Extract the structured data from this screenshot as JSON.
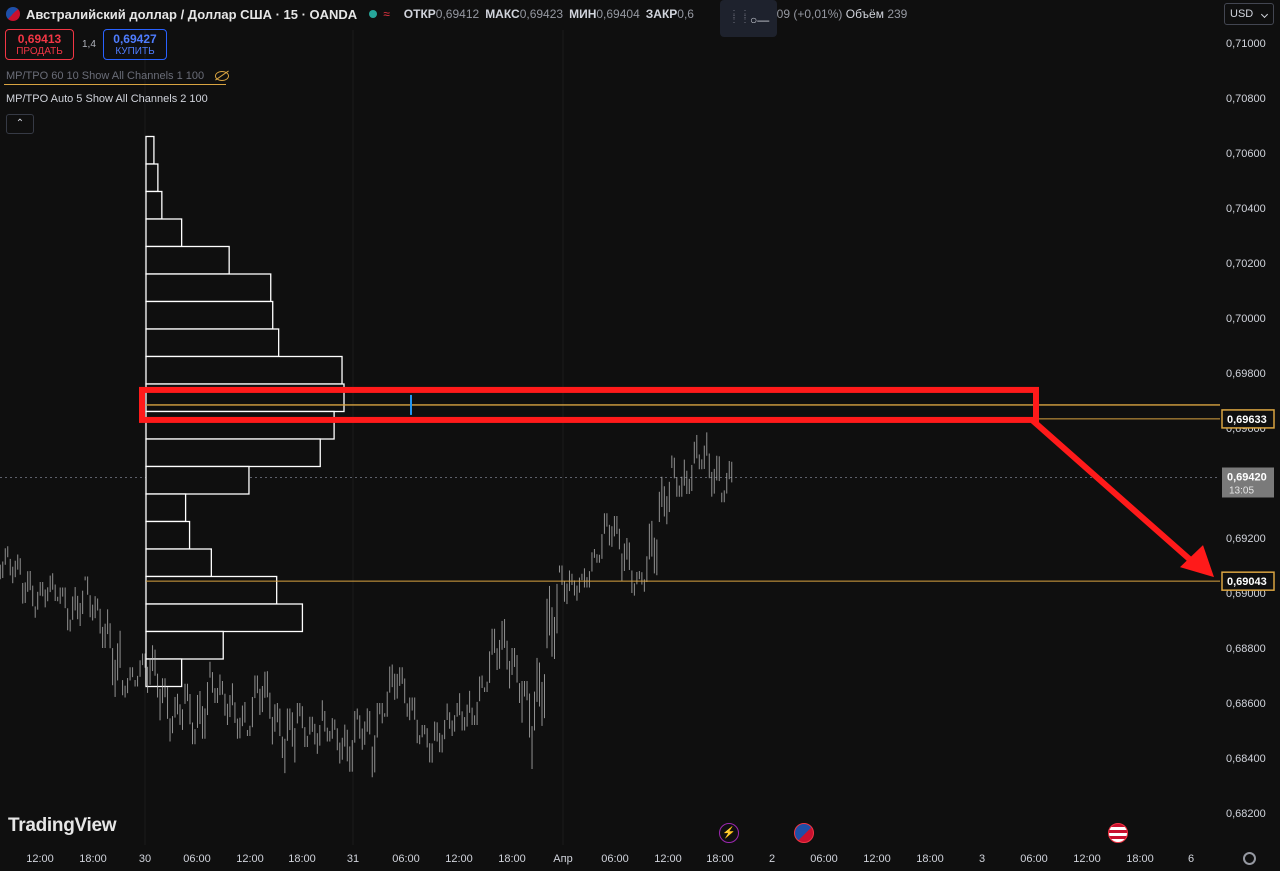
{
  "header": {
    "symbol_title": "Австралийский доллар / Доллар США · 15 · OANDA",
    "open_label": "ОТКР",
    "open_value": "0,69412",
    "high_label": "МАКС",
    "high_value": "0,69423",
    "low_label": "МИН",
    "low_value": "0,69404",
    "close_label": "ЗАКР",
    "close_value": "0,6",
    "change_value": "009 (+0,01%)",
    "volume_label": "Объём",
    "volume_value": "239"
  },
  "trade": {
    "sell_price": "0,69413",
    "sell_label": "ПРОДАТЬ",
    "spread": "1,4",
    "buy_price": "0,69427",
    "buy_label": "КУПИТЬ"
  },
  "indicators": [
    {
      "name": "MP/TPO 60 10 Show All Channels 1 100",
      "hidden": true
    },
    {
      "name": "MP/TPO Auto 5 Show All Channels 2 100",
      "hidden": false
    }
  ],
  "toolbar": {
    "collapse_glyph": "⌃",
    "currency": "USD",
    "settings_icon": "gear-icon"
  },
  "brand": {
    "logo_text": "TradingView"
  },
  "price_axis": {
    "ticks": [
      "0,71000",
      "0,70800",
      "0,70600",
      "0,70400",
      "0,70200",
      "0,70000",
      "0,69800",
      "0,69600",
      "0,69400",
      "0,69200",
      "0,69000",
      "0,68800",
      "0,68600",
      "0,68400",
      "0,68200"
    ],
    "current_price": "0,69420",
    "countdown": "13:05",
    "level_upper": "0,69633",
    "level_lower": "0,69043"
  },
  "time_axis": {
    "ticks": [
      "12:00",
      "18:00",
      "30",
      "06:00",
      "12:00",
      "18:00",
      "31",
      "06:00",
      "12:00",
      "18:00",
      "Апр",
      "06:00",
      "12:00",
      "18:00",
      "2",
      "06:00",
      "12:00",
      "18:00",
      "3",
      "06:00",
      "12:00",
      "18:00",
      "6"
    ]
  },
  "events": [
    {
      "icon": "lightning-icon",
      "glyph": "⚡"
    },
    {
      "icon": "australia-flag-icon"
    },
    {
      "icon": "us-flag-icon"
    }
  ],
  "colors": {
    "background": "#0f0f0f",
    "candles": "#bcbcbc",
    "profile": "#ffffff",
    "level_line": "#d9a441",
    "highlight_box": "#ff1a1a",
    "poc_marker": "#2196f3"
  },
  "chart_data": {
    "type": "candlestick",
    "title": "Австралийский доллар / Доллар США · 15 · OANDA",
    "y_range": [
      0.682,
      0.711
    ],
    "volume_profile_levels": [
      {
        "price": 0.7061,
        "size": 0.04
      },
      {
        "price": 0.7051,
        "size": 0.06
      },
      {
        "price": 0.7041,
        "size": 0.08
      },
      {
        "price": 0.7031,
        "size": 0.18
      },
      {
        "price": 0.7021,
        "size": 0.42
      },
      {
        "price": 0.7011,
        "size": 0.63
      },
      {
        "price": 0.7001,
        "size": 0.64
      },
      {
        "price": 0.6991,
        "size": 0.67
      },
      {
        "price": 0.6981,
        "size": 0.99
      },
      {
        "price": 0.6971,
        "size": 1.0
      },
      {
        "price": 0.6961,
        "size": 0.95
      },
      {
        "price": 0.6951,
        "size": 0.88
      },
      {
        "price": 0.6941,
        "size": 0.52
      },
      {
        "price": 0.6931,
        "size": 0.2
      },
      {
        "price": 0.6921,
        "size": 0.22
      },
      {
        "price": 0.6911,
        "size": 0.33
      },
      {
        "price": 0.6901,
        "size": 0.66
      },
      {
        "price": 0.6891,
        "size": 0.79
      },
      {
        "price": 0.6881,
        "size": 0.39
      },
      {
        "price": 0.6871,
        "size": 0.18
      }
    ],
    "price_path": [
      [
        0.6911,
        0.6917,
        0.6905,
        0.6912
      ],
      [
        0.6912,
        0.6914,
        0.6902,
        0.6905
      ],
      [
        0.6905,
        0.6908,
        0.6893,
        0.6896
      ],
      [
        0.6896,
        0.6904,
        0.6891,
        0.6901
      ],
      [
        0.6901,
        0.6909,
        0.6897,
        0.6899
      ],
      [
        0.6899,
        0.6902,
        0.6886,
        0.689
      ],
      [
        0.689,
        0.6905,
        0.6888,
        0.6903
      ],
      [
        0.6903,
        0.6906,
        0.689,
        0.6893
      ],
      [
        0.6893,
        0.6898,
        0.688,
        0.6884
      ],
      [
        0.6884,
        0.6889,
        0.6862,
        0.6867
      ],
      [
        0.6867,
        0.6873,
        0.6862,
        0.6869
      ],
      [
        0.6869,
        0.6878,
        0.6866,
        0.6875
      ],
      [
        0.6875,
        0.6881,
        0.6862,
        0.6865
      ],
      [
        0.6865,
        0.6869,
        0.6846,
        0.6852
      ],
      [
        0.6852,
        0.6864,
        0.6849,
        0.6861
      ],
      [
        0.6861,
        0.6867,
        0.6845,
        0.6849
      ],
      [
        0.6849,
        0.6871,
        0.6847,
        0.6868
      ],
      [
        0.6868,
        0.6875,
        0.686,
        0.6864
      ],
      [
        0.6864,
        0.6868,
        0.6852,
        0.6857
      ],
      [
        0.6857,
        0.6862,
        0.6847,
        0.685
      ],
      [
        0.685,
        0.687,
        0.6848,
        0.6867
      ],
      [
        0.6867,
        0.6872,
        0.6853,
        0.6856
      ],
      [
        0.6856,
        0.686,
        0.684,
        0.6844
      ],
      [
        0.6844,
        0.6858,
        0.6833,
        0.6855
      ],
      [
        0.6855,
        0.686,
        0.6844,
        0.6848
      ],
      [
        0.6848,
        0.6855,
        0.684,
        0.6852
      ],
      [
        0.6852,
        0.6861,
        0.6846,
        0.685
      ],
      [
        0.685,
        0.6854,
        0.6838,
        0.6843
      ],
      [
        0.6843,
        0.6858,
        0.6835,
        0.6854
      ],
      [
        0.6854,
        0.686,
        0.6843,
        0.6846
      ],
      [
        0.6846,
        0.686,
        0.6833,
        0.6858
      ],
      [
        0.6858,
        0.6874,
        0.6855,
        0.687
      ],
      [
        0.687,
        0.6873,
        0.6855,
        0.6858
      ],
      [
        0.6858,
        0.6862,
        0.6845,
        0.6848
      ],
      [
        0.6848,
        0.6852,
        0.6838,
        0.6845
      ],
      [
        0.6845,
        0.6856,
        0.6842,
        0.6853
      ],
      [
        0.6853,
        0.686,
        0.6848,
        0.6857
      ],
      [
        0.6857,
        0.6866,
        0.685,
        0.6855
      ],
      [
        0.6855,
        0.687,
        0.6852,
        0.6866
      ],
      [
        0.6866,
        0.6887,
        0.6864,
        0.6882
      ],
      [
        0.6882,
        0.6893,
        0.6872,
        0.6876
      ],
      [
        0.6876,
        0.688,
        0.686,
        0.6864
      ],
      [
        0.6864,
        0.6868,
        0.6836,
        0.6852
      ],
      [
        0.6852,
        0.6882,
        0.685,
        0.6878
      ],
      [
        0.6878,
        0.6912,
        0.6876,
        0.6906
      ],
      [
        0.6906,
        0.691,
        0.6895,
        0.6903
      ],
      [
        0.6903,
        0.6907,
        0.6896,
        0.6905
      ],
      [
        0.6905,
        0.6916,
        0.6902,
        0.6913
      ],
      [
        0.6913,
        0.6929,
        0.6911,
        0.6926
      ],
      [
        0.6926,
        0.6928,
        0.6913,
        0.6916
      ],
      [
        0.6916,
        0.692,
        0.69,
        0.6903
      ],
      [
        0.6903,
        0.6908,
        0.6899,
        0.6906
      ],
      [
        0.6906,
        0.693,
        0.6904,
        0.6926
      ],
      [
        0.6926,
        0.6947,
        0.6925,
        0.6944
      ],
      [
        0.6944,
        0.695,
        0.6935,
        0.6938
      ],
      [
        0.6938,
        0.6955,
        0.6936,
        0.6951
      ],
      [
        0.6951,
        0.6962,
        0.6945,
        0.6948
      ],
      [
        0.6948,
        0.6952,
        0.6934,
        0.6937
      ],
      [
        0.6937,
        0.6948,
        0.6933,
        0.6942
      ]
    ]
  }
}
